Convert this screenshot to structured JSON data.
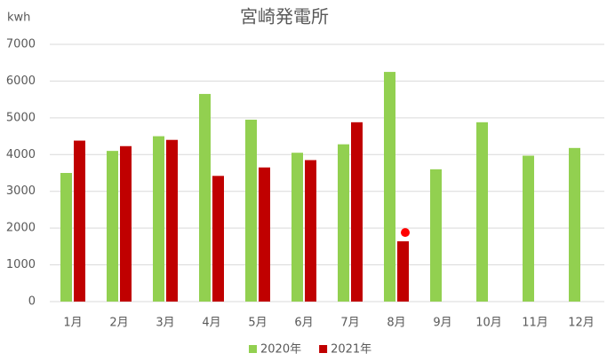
{
  "chart_data": {
    "type": "bar",
    "title": "宮崎発電所",
    "y_label": "kwh",
    "categories": [
      "1月",
      "2月",
      "3月",
      "4月",
      "5月",
      "6月",
      "7月",
      "8月",
      "9月",
      "10月",
      "11月",
      "12月"
    ],
    "series": [
      {
        "name": "2020年",
        "color": "#92d050",
        "values": [
          3500,
          4100,
          4500,
          5650,
          4950,
          4050,
          4280,
          6250,
          3600,
          4880,
          3970,
          4180
        ]
      },
      {
        "name": "2021年",
        "color": "#c00000",
        "values": [
          4380,
          4230,
          4400,
          3420,
          3650,
          3850,
          4880,
          1640,
          null,
          null,
          null,
          null
        ]
      }
    ],
    "annotation_points": [
      {
        "category": "8月",
        "value": 1880,
        "color": "#ff0000"
      }
    ],
    "ylim": [
      0,
      7000
    ],
    "yticks": [
      0,
      1000,
      2000,
      3000,
      4000,
      5000,
      6000,
      7000
    ],
    "grid": true,
    "legend": "bottom"
  }
}
